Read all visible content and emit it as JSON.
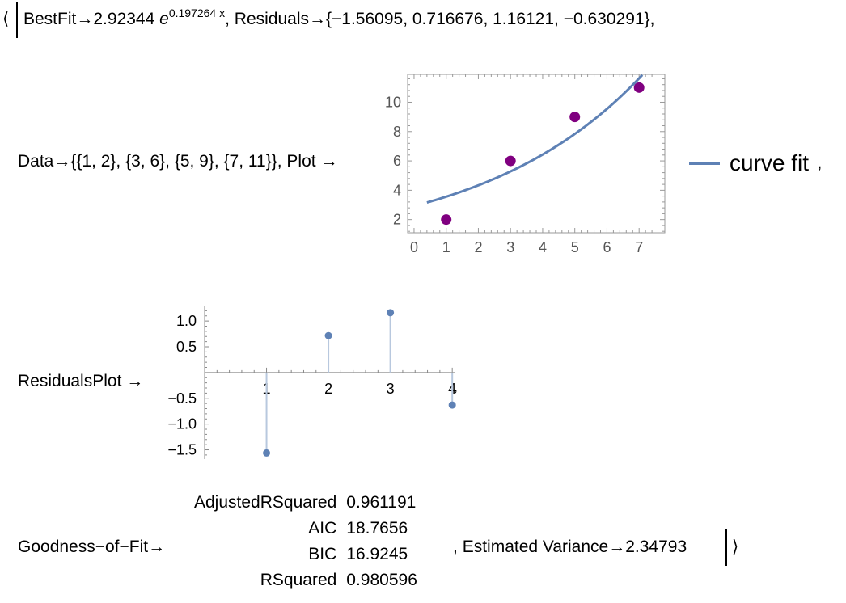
{
  "association": {
    "open_bracket": "⟨",
    "close_bracket": "⟩",
    "best_fit": {
      "key": "BestFit",
      "arrow": "→",
      "coefficient": "2.92344",
      "base": "e",
      "exponent": "0.197264 x"
    },
    "residuals": {
      "key": "Residuals",
      "arrow": "→",
      "value": "{−1.56095, 0.716676, 1.16121, −0.630291}",
      "trailing": ","
    },
    "data": {
      "key": "Data",
      "arrow": "→",
      "value": "{{1, 2}, {3, 6}, {5, 9}, {7, 11}}",
      "separator": ","
    },
    "plot": {
      "key": "Plot",
      "arrow": "→",
      "legend_label": "curve fit",
      "trailing": ","
    },
    "residuals_plot": {
      "key": "ResidualsPlot",
      "arrow": "→",
      "trailing": ","
    },
    "goodness_of_fit": {
      "key": "Goodness−of−Fit",
      "arrow": "→",
      "rows": [
        {
          "name": "AdjustedRSquared",
          "value": "0.961191"
        },
        {
          "name": "AIC",
          "value": "18.7656"
        },
        {
          "name": "BIC",
          "value": "16.9245"
        },
        {
          "name": "RSquared",
          "value": "0.980596"
        }
      ]
    },
    "estimated_variance": {
      "prefix": ",",
      "key": "Estimated Variance",
      "arrow": "→",
      "value": "2.34793"
    }
  },
  "chart_data": [
    {
      "type": "scatter",
      "x": [
        1,
        3,
        5,
        7
      ],
      "y": [
        2,
        6,
        9,
        11
      ],
      "marker_color": "#800080",
      "fit_curve": {
        "a": 2.92344,
        "b": 0.197264,
        "name": "curve fit",
        "color": "#5e81b5"
      },
      "x_ticks": [
        "0",
        "1",
        "2",
        "3",
        "4",
        "5",
        "6",
        "7"
      ],
      "y_ticks": [
        "2",
        "4",
        "6",
        "8",
        "10"
      ],
      "xlim": [
        -0.2,
        7.8
      ],
      "ylim": [
        1.1,
        11.9
      ],
      "legend_position": "right",
      "frame": true,
      "grid": false
    },
    {
      "type": "scatter",
      "x": [
        1,
        2,
        3,
        4
      ],
      "y": [
        -1.56095,
        0.716676,
        1.16121,
        -0.630291
      ],
      "stems": true,
      "color": "#5e81b5",
      "x_ticks": [
        "1",
        "2",
        "3",
        "4"
      ],
      "y_ticks": [
        "1.0",
        "0.5",
        "−0.5",
        "−1.0",
        "−1.5"
      ],
      "xlim": [
        0,
        4.05
      ],
      "ylim": [
        -1.68,
        1.3
      ],
      "grid": false
    }
  ]
}
